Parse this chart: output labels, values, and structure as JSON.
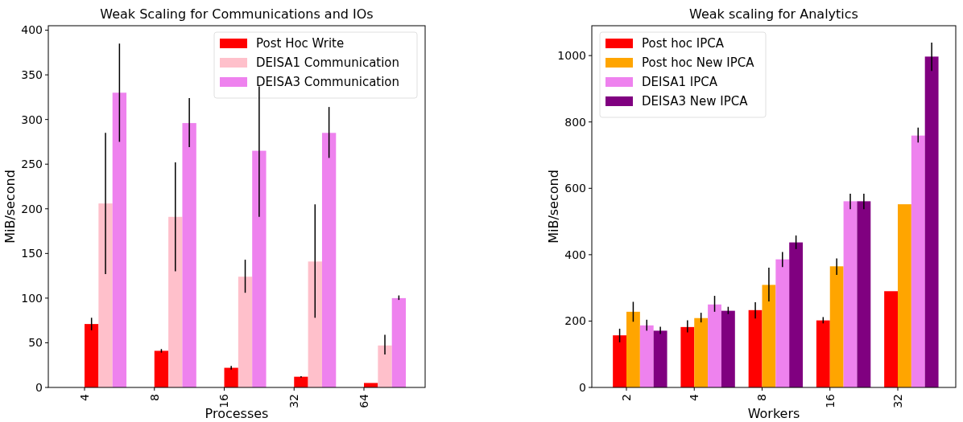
{
  "chart_data": [
    {
      "type": "bar",
      "title": "Weak Scaling for Communications and IOs",
      "xlabel": "Processes",
      "ylabel": "MiB/second",
      "categories": [
        "4",
        "8",
        "16",
        "32",
        "64"
      ],
      "ylim": [
        0,
        405
      ],
      "yticks": [
        0,
        50,
        100,
        150,
        200,
        250,
        300,
        350,
        400
      ],
      "legend": "top right",
      "series": [
        {
          "name": "Post Hoc Write",
          "color": "#ff0000",
          "values": [
            71,
            41,
            22,
            12,
            5
          ],
          "errors": [
            [
              64,
              78
            ],
            [
              39,
              43
            ],
            [
              20,
              24
            ],
            [
              11,
              12.5
            ],
            null
          ]
        },
        {
          "name": "DEISA1 Communication",
          "color": "#ffc0cb",
          "values": [
            206,
            191,
            124,
            141,
            47
          ],
          "errors": [
            [
              127,
              285
            ],
            [
              130,
              252
            ],
            [
              106,
              143
            ],
            [
              78,
              205
            ],
            [
              37,
              59
            ]
          ]
        },
        {
          "name": "DEISA3 Communication",
          "color": "#ee82ee",
          "values": [
            330,
            296,
            265,
            285,
            100
          ],
          "errors": [
            [
              275,
              385
            ],
            [
              269,
              324
            ],
            [
              191,
              337
            ],
            [
              257,
              314
            ],
            [
              98,
              103
            ]
          ]
        }
      ]
    },
    {
      "type": "bar",
      "title": "Weak scaling for Analytics",
      "xlabel": "Workers",
      "ylabel": "MiB/second",
      "categories": [
        "2",
        "4",
        "8",
        "16",
        "32"
      ],
      "ylim": [
        0,
        1090
      ],
      "yticks": [
        0,
        200,
        400,
        600,
        800,
        1000
      ],
      "legend": "top left",
      "series": [
        {
          "name": "Post hoc IPCA",
          "color": "#ff0000",
          "values": [
            157,
            182,
            233,
            202,
            290
          ],
          "errors": [
            [
              136,
              177
            ],
            [
              166,
              202
            ],
            [
              208,
              257
            ],
            [
              193,
              212
            ],
            null
          ]
        },
        {
          "name": "Post hoc New IPCA",
          "color": "#ffa500",
          "values": [
            228,
            209,
            309,
            365,
            552
          ],
          "errors": [
            [
              198,
              258
            ],
            [
              196,
              225
            ],
            [
              259,
              361
            ],
            [
              339,
              389
            ],
            null
          ]
        },
        {
          "name": "DEISA1 IPCA",
          "color": "#ee82ee",
          "values": [
            187,
            250,
            386,
            561,
            759
          ],
          "errors": [
            [
              171,
              204
            ],
            [
              228,
              276
            ],
            [
              363,
              408
            ],
            [
              537,
              584
            ],
            [
              738,
              783
            ]
          ]
        },
        {
          "name": "DEISA3 New IPCA",
          "color": "#800080",
          "values": [
            171,
            231,
            437,
            561,
            997
          ],
          "errors": [
            [
              161,
              183
            ],
            [
              221,
              243
            ],
            [
              417,
              458
            ],
            [
              537,
              584
            ],
            [
              954,
              1039
            ]
          ]
        }
      ]
    }
  ]
}
